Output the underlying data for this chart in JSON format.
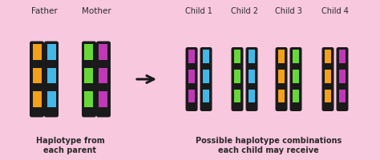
{
  "bg_color": "#f8c8df",
  "colors": {
    "orange": "#f5a01a",
    "blue": "#42b8e8",
    "green": "#68d838",
    "purple": "#c038b8",
    "dark": "#1a1a1a"
  },
  "father_label": "Father",
  "mother_label": "Mother",
  "child_labels": [
    "Child 1",
    "Child 2",
    "Child 3",
    "Child 4"
  ],
  "bottom_left": "Haplotype from\neach parent",
  "bottom_right": "Possible haplotype combinations\neach child may receive",
  "text_color": "#2a2a2a",
  "father_chrs": [
    "orange",
    "blue"
  ],
  "mother_chrs": [
    "green",
    "purple"
  ],
  "children": [
    [
      "purple",
      "blue"
    ],
    [
      "green",
      "blue"
    ],
    [
      "orange",
      "green"
    ],
    [
      "orange",
      "purple"
    ]
  ]
}
